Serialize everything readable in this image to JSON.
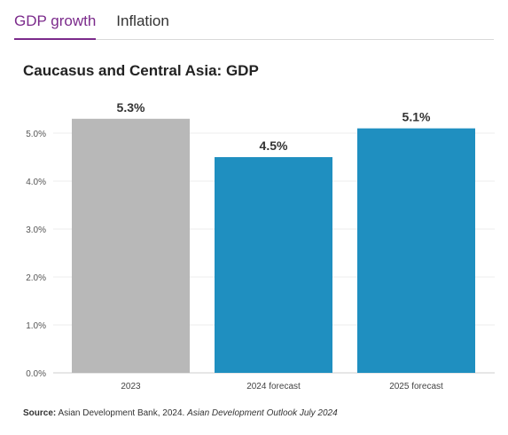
{
  "tabs": [
    {
      "label": "GDP growth",
      "active": true
    },
    {
      "label": "Inflation",
      "active": false
    }
  ],
  "chart_data": {
    "type": "bar",
    "title": "Caucasus and Central Asia: GDP",
    "categories": [
      "2023",
      "2024 forecast",
      "2025 forecast"
    ],
    "values": [
      5.3,
      4.5,
      5.1
    ],
    "value_labels": [
      "5.3%",
      "4.5%",
      "5.1%"
    ],
    "bar_colors": [
      "#b8b8b8",
      "#1f8fc0",
      "#1f8fc0"
    ],
    "yticks": [
      "0.0%",
      "1.0%",
      "2.0%",
      "3.0%",
      "4.0%",
      "5.0%"
    ],
    "ylim": [
      0,
      5.5
    ],
    "grid": true
  },
  "source": {
    "label": "Source:",
    "text": " Asian Development Bank, 2024. ",
    "italic": "Asian Development Outlook July 2024"
  }
}
